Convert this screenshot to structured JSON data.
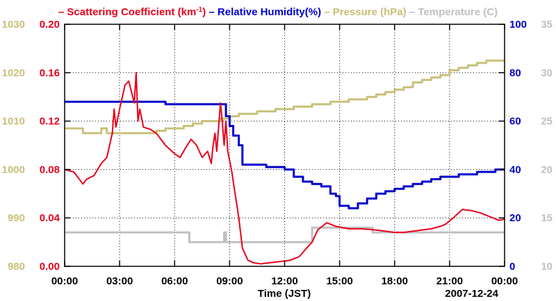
{
  "chart_data": {
    "type": "line",
    "title_parts": [
      {
        "label": "Scattering Coefficient (km",
        "sup": "-1",
        "close": ")",
        "color": "#e8001c",
        "dash": "–"
      },
      {
        "label": "Relative Humidity(%)",
        "color": "#0000cc",
        "dash": "–"
      },
      {
        "label": "Pressure (hPa)",
        "color": "#c8c07a",
        "dash": "–"
      },
      {
        "label": "Temperature (C)",
        "color": "#c0c0c0",
        "dash": "–"
      }
    ],
    "xlabel": "Time (JST)",
    "date_label": "2007-12-24",
    "x_range": [
      0,
      24
    ],
    "x_ticks": [
      0,
      3,
      6,
      9,
      12,
      15,
      18,
      21,
      24
    ],
    "x_tick_labels": [
      "00:00",
      "03:00",
      "06:00",
      "09:00",
      "12:00",
      "15:00",
      "18:00",
      "21:00",
      "00:00"
    ],
    "axes": {
      "scattering": {
        "range": [
          0,
          0.2
        ],
        "ticks": [
          "0.00",
          "0.04",
          "0.08",
          "0.12",
          "0.16",
          "0.20"
        ],
        "color": "#e8001c",
        "side": "left-inner"
      },
      "pressure": {
        "range": [
          980,
          1030
        ],
        "ticks": [
          "980",
          "990",
          "1000",
          "1010",
          "1020",
          "1030"
        ],
        "color": "#c8c07a",
        "side": "left-outer"
      },
      "humidity": {
        "range": [
          0,
          100
        ],
        "ticks": [
          "0",
          "20",
          "40",
          "60",
          "80",
          "100"
        ],
        "color": "#0000cc",
        "side": "right-inner"
      },
      "temperature": {
        "range": [
          10,
          35
        ],
        "ticks": [
          "10",
          "15",
          "20",
          "25",
          "30",
          "35"
        ],
        "color": "#c0c0c0",
        "side": "right-outer"
      }
    },
    "series": [
      {
        "name": "Pressure (hPa)",
        "axis": "pressure",
        "color": "#c8c07a",
        "step": true,
        "x": [
          0,
          0.9,
          1.0,
          1.6,
          2.0,
          2.3,
          2.6,
          3.0,
          4.0,
          5.0,
          5.5,
          6.0,
          6.5,
          7.0,
          7.5,
          8.0,
          8.5,
          9.0,
          9.5,
          10.5,
          11.5,
          12.5,
          13.5,
          14.5,
          15.5,
          16.5,
          17.0,
          17.5,
          18.0,
          18.5,
          19.0,
          19.5,
          20.0,
          20.5,
          21.0,
          21.5,
          22.0,
          22.5,
          23.0,
          24.0
        ],
        "y": [
          1008.5,
          1008.5,
          1007.5,
          1007.5,
          1008.5,
          1007.5,
          1007.5,
          1007.5,
          1007.5,
          1008.0,
          1008.5,
          1008.5,
          1009.0,
          1009.5,
          1010.0,
          1010.0,
          1010.5,
          1011.0,
          1011.5,
          1012.0,
          1012.5,
          1013.0,
          1013.5,
          1014.0,
          1014.5,
          1015.0,
          1015.5,
          1016.0,
          1016.5,
          1017.0,
          1018.0,
          1018.5,
          1019.0,
          1019.5,
          1020.5,
          1021.0,
          1021.5,
          1022.0,
          1022.5,
          1022.5
        ]
      },
      {
        "name": "Temperature (C)",
        "axis": "temperature",
        "color": "#c0c0c0",
        "step": true,
        "x": [
          0,
          6.7,
          6.8,
          8.6,
          8.7,
          8.8,
          9.0,
          13.5,
          14.0,
          16.8,
          17.0,
          24.0
        ],
        "y": [
          13.5,
          13.5,
          12.5,
          12.5,
          13.5,
          12.5,
          12.5,
          14.0,
          14.0,
          13.5,
          13.5,
          13.5
        ]
      },
      {
        "name": "Relative Humidity(%)",
        "axis": "humidity",
        "color": "#0000cc",
        "step": true,
        "x": [
          0,
          5.2,
          5.5,
          6.2,
          8.6,
          8.8,
          9.0,
          9.2,
          9.5,
          9.7,
          10.0,
          10.5,
          11.0,
          11.5,
          12.0,
          12.5,
          13.0,
          13.5,
          14.0,
          14.5,
          14.8,
          15.0,
          15.5,
          16.0,
          16.5,
          17.0,
          17.5,
          18.0,
          18.5,
          19.0,
          19.5,
          20.0,
          20.5,
          21.0,
          21.5,
          22.0,
          22.5,
          23.0,
          23.5,
          24.0
        ],
        "y": [
          68,
          68,
          67,
          67,
          67,
          62,
          58,
          54,
          50,
          42,
          42,
          42,
          41,
          41,
          40,
          37,
          35,
          34,
          33,
          30,
          29,
          25,
          24,
          26,
          28,
          30,
          31,
          32,
          33,
          34,
          35,
          36,
          37,
          37,
          38,
          38,
          39,
          39,
          40,
          40
        ]
      },
      {
        "name": "Scattering Coefficient (km-1)",
        "axis": "scattering",
        "color": "#e8001c",
        "step": false,
        "x": [
          0,
          0.5,
          1.0,
          1.2,
          1.6,
          2.0,
          2.3,
          2.6,
          2.7,
          2.8,
          3.0,
          3.3,
          3.5,
          3.8,
          3.9,
          4.0,
          4.1,
          4.3,
          4.7,
          5.0,
          5.5,
          6.0,
          6.3,
          6.6,
          6.9,
          7.2,
          7.5,
          7.8,
          8.0,
          8.1,
          8.2,
          8.3,
          8.5,
          8.6,
          8.7,
          8.8,
          8.9,
          9.1,
          9.3,
          9.5,
          9.7,
          10.0,
          10.3,
          10.7,
          11.2,
          11.8,
          12.3,
          12.8,
          13.2,
          13.5,
          13.8,
          14.3,
          14.8,
          15.5,
          16.2,
          17.0,
          17.5,
          18.0,
          18.5,
          19.0,
          19.5,
          20.0,
          20.5,
          20.8,
          21.2,
          21.7,
          22.2,
          22.7,
          23.2,
          23.7,
          24.0
        ],
        "y": [
          0.08,
          0.078,
          0.068,
          0.072,
          0.075,
          0.085,
          0.09,
          0.11,
          0.13,
          0.115,
          0.13,
          0.15,
          0.153,
          0.135,
          0.16,
          0.12,
          0.13,
          0.115,
          0.113,
          0.11,
          0.1,
          0.093,
          0.09,
          0.098,
          0.105,
          0.1,
          0.09,
          0.095,
          0.085,
          0.1,
          0.11,
          0.095,
          0.135,
          0.12,
          0.1,
          0.12,
          0.095,
          0.08,
          0.06,
          0.04,
          0.015,
          0.005,
          0.003,
          0.002,
          0.003,
          0.004,
          0.005,
          0.008,
          0.015,
          0.02,
          0.03,
          0.036,
          0.033,
          0.031,
          0.031,
          0.03,
          0.029,
          0.028,
          0.028,
          0.029,
          0.03,
          0.031,
          0.033,
          0.035,
          0.04,
          0.047,
          0.046,
          0.044,
          0.041,
          0.038,
          0.039
        ]
      }
    ]
  }
}
